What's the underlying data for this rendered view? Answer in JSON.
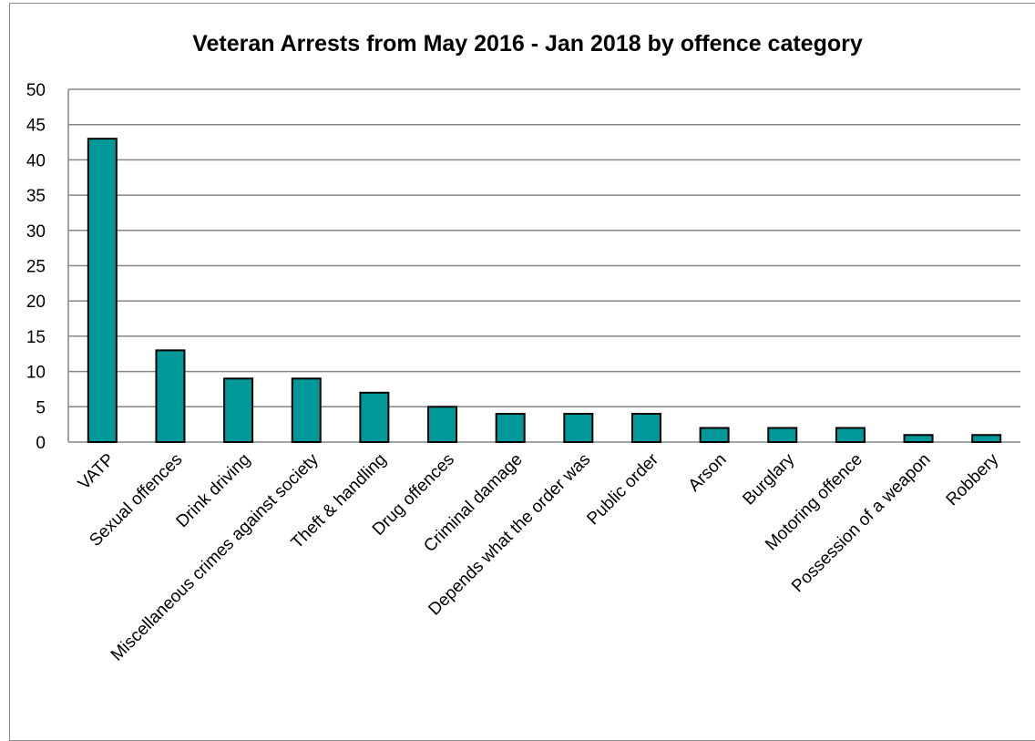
{
  "chart_data": {
    "type": "bar",
    "title": "Veteran Arrests from May 2016 - Jan 2018 by offence category",
    "xlabel": "",
    "ylabel": "",
    "ylim": [
      0,
      50
    ],
    "ytick_step": 5,
    "grid": true,
    "bar_color": "#009999",
    "categories": [
      "VATP",
      "Sexual offences",
      "Drink driving",
      "Miscellaneous crimes against society",
      "Theft & handling",
      "Drug offences",
      "Criminal damage",
      "Depends what the order was",
      "Public order",
      "Arson",
      "Burglary",
      "Motoring offence",
      "Possession of a weapon",
      "Robbery"
    ],
    "values": [
      43,
      13,
      9,
      9,
      7,
      5,
      4,
      4,
      4,
      2,
      2,
      2,
      1,
      1
    ]
  }
}
